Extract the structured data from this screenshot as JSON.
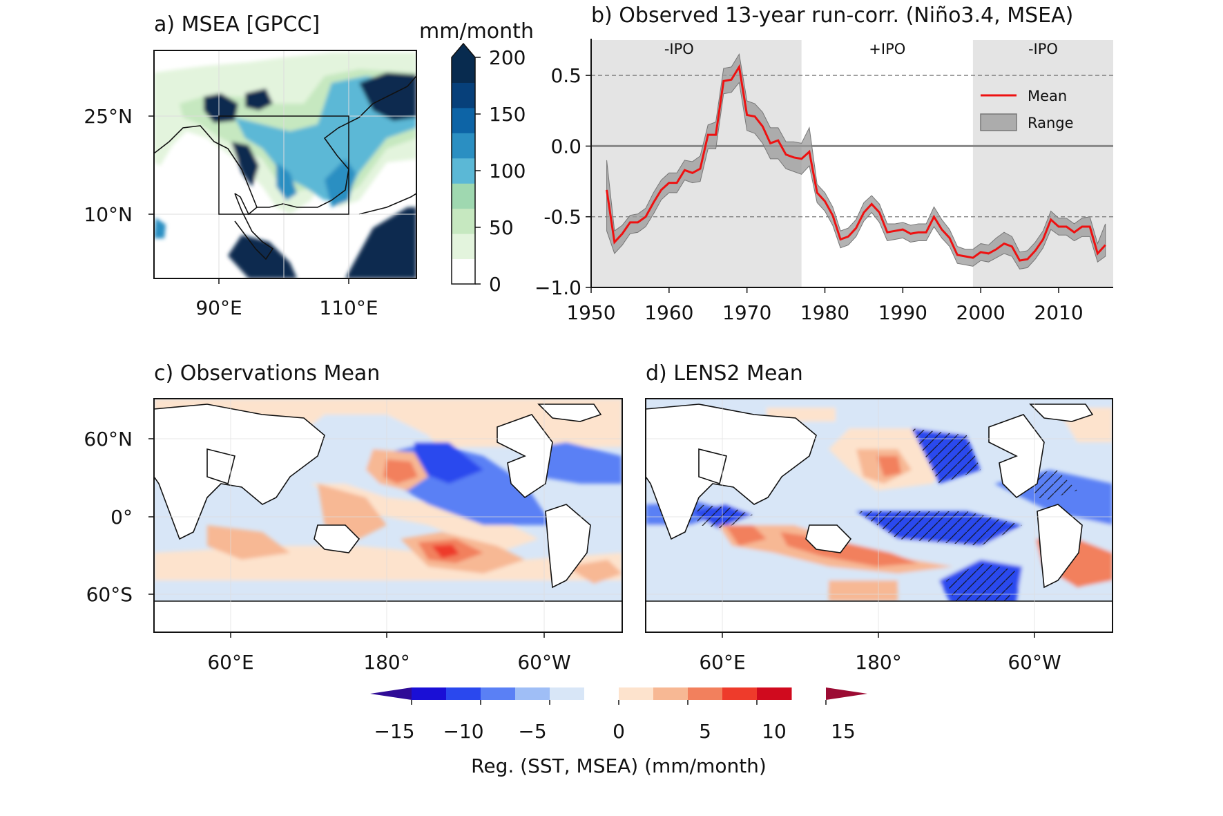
{
  "panel_a": {
    "title": "a) MSEA [GPCC]",
    "x_ticks": [
      "90°E",
      "110°E"
    ],
    "y_ticks": [
      "25°N",
      "10°N"
    ],
    "colorbar": {
      "unit": "mm/month",
      "ticks": [
        "200",
        "150",
        "100",
        "50",
        "0"
      ],
      "levels": [
        0,
        25,
        50,
        75,
        100,
        125,
        150,
        175,
        200
      ],
      "colors": [
        "#ffffff",
        "#e3f4dd",
        "#c6e8c0",
        "#9fd8b0",
        "#5bb8d6",
        "#2b8fc2",
        "#0d64a6",
        "#07407a",
        "#082b4f"
      ],
      "extend": "max"
    },
    "box": {
      "lon": [
        90,
        110
      ],
      "lat": [
        10,
        25
      ]
    }
  },
  "chart_data": {
    "type": "line",
    "title": "b) Observed 13-year run-corr. (Niño3.4, MSEA)",
    "xlim": [
      1950,
      2017
    ],
    "ylim": [
      -1.0,
      0.75
    ],
    "x_ticks": [
      "1950",
      "1960",
      "1970",
      "1980",
      "1990",
      "2000",
      "2010"
    ],
    "y_ticks": [
      "0.5",
      "0.0",
      "-0.5",
      "−1.0"
    ],
    "reference_lines": {
      "solid": 0.0,
      "dashed": [
        0.5,
        -0.5
      ]
    },
    "phases": [
      {
        "label": "-IPO",
        "start": 1950,
        "end": 1977,
        "shaded": true
      },
      {
        "label": "+IPO",
        "start": 1977,
        "end": 1999,
        "shaded": false
      },
      {
        "label": "-IPO",
        "start": 1999,
        "end": 2017,
        "shaded": true
      }
    ],
    "legend": {
      "position": "upper-right",
      "entries": [
        "Mean",
        "Range"
      ]
    },
    "x": [
      1952,
      1953,
      1954,
      1955,
      1956,
      1957,
      1958,
      1959,
      1960,
      1961,
      1962,
      1963,
      1964,
      1965,
      1966,
      1967,
      1968,
      1969,
      1970,
      1971,
      1972,
      1973,
      1974,
      1975,
      1976,
      1977,
      1978,
      1979,
      1980,
      1981,
      1982,
      1983,
      1984,
      1985,
      1986,
      1987,
      1988,
      1989,
      1990,
      1991,
      1992,
      1993,
      1994,
      1995,
      1996,
      1997,
      1998,
      1999,
      2000,
      2001,
      2002,
      2003,
      2004,
      2005,
      2006,
      2007,
      2008,
      2009,
      2010,
      2011,
      2012,
      2013,
      2014,
      2015,
      2016
    ],
    "series": [
      {
        "name": "Mean",
        "color": "#ee1111",
        "values": [
          -0.31,
          -0.68,
          -0.62,
          -0.54,
          -0.54,
          -0.5,
          -0.4,
          -0.31,
          -0.26,
          -0.26,
          -0.17,
          -0.19,
          -0.16,
          0.08,
          0.08,
          0.46,
          0.47,
          0.56,
          0.22,
          0.21,
          0.14,
          0.02,
          0.04,
          -0.06,
          -0.08,
          -0.09,
          -0.04,
          -0.33,
          -0.39,
          -0.49,
          -0.66,
          -0.64,
          -0.58,
          -0.47,
          -0.41,
          -0.47,
          -0.61,
          -0.6,
          -0.59,
          -0.62,
          -0.61,
          -0.61,
          -0.5,
          -0.59,
          -0.65,
          -0.77,
          -0.78,
          -0.79,
          -0.75,
          -0.76,
          -0.73,
          -0.69,
          -0.71,
          -0.81,
          -0.8,
          -0.74,
          -0.66,
          -0.52,
          -0.57,
          -0.57,
          -0.61,
          -0.57,
          -0.57,
          -0.76,
          -0.7
        ]
      },
      {
        "name": "Range",
        "color": "#999999",
        "upper": [
          -0.1,
          -0.6,
          -0.56,
          -0.49,
          -0.48,
          -0.44,
          -0.33,
          -0.24,
          -0.19,
          -0.19,
          -0.1,
          -0.11,
          -0.07,
          0.15,
          0.17,
          0.55,
          0.56,
          0.65,
          0.32,
          0.3,
          0.24,
          0.13,
          0.13,
          0.03,
          0.03,
          0.02,
          0.13,
          -0.27,
          -0.33,
          -0.43,
          -0.6,
          -0.58,
          -0.52,
          -0.4,
          -0.35,
          -0.41,
          -0.55,
          -0.55,
          -0.54,
          -0.56,
          -0.55,
          -0.55,
          -0.43,
          -0.52,
          -0.59,
          -0.71,
          -0.73,
          -0.73,
          -0.69,
          -0.7,
          -0.65,
          -0.61,
          -0.64,
          -0.75,
          -0.74,
          -0.68,
          -0.6,
          -0.46,
          -0.51,
          -0.51,
          -0.55,
          -0.51,
          -0.5,
          -0.69,
          -0.55
        ],
        "lower": [
          -0.6,
          -0.76,
          -0.7,
          -0.62,
          -0.61,
          -0.57,
          -0.48,
          -0.38,
          -0.33,
          -0.33,
          -0.24,
          -0.26,
          -0.25,
          -0.02,
          -0.02,
          0.37,
          0.38,
          0.45,
          0.11,
          0.09,
          0.02,
          -0.09,
          -0.09,
          -0.16,
          -0.18,
          -0.2,
          -0.14,
          -0.4,
          -0.46,
          -0.56,
          -0.72,
          -0.7,
          -0.64,
          -0.53,
          -0.47,
          -0.54,
          -0.67,
          -0.66,
          -0.65,
          -0.68,
          -0.67,
          -0.67,
          -0.57,
          -0.65,
          -0.71,
          -0.83,
          -0.84,
          -0.85,
          -0.81,
          -0.82,
          -0.79,
          -0.76,
          -0.78,
          -0.87,
          -0.86,
          -0.8,
          -0.72,
          -0.59,
          -0.63,
          -0.63,
          -0.67,
          -0.64,
          -0.64,
          -0.82,
          -0.78
        ]
      }
    ]
  },
  "panel_c": {
    "title": "c) Observations Mean"
  },
  "panel_d": {
    "title": "d) LENS2 Mean"
  },
  "maps": {
    "x_ticks": [
      "60°E",
      "180°",
      "60°W"
    ],
    "y_ticks": [
      "60°N",
      "0°",
      "60°S"
    ]
  },
  "colorbar_bottom": {
    "label": "Reg. (SST, MSEA) (mm/month)",
    "ticks": [
      "−15",
      "−10",
      "−5",
      "0",
      "5",
      "10",
      "15"
    ],
    "levels": [
      -17.5,
      -15,
      -12.5,
      -10,
      -7.5,
      -5,
      -2.5,
      0,
      2.5,
      5,
      7.5,
      10,
      12.5,
      15,
      17.5
    ],
    "colors": [
      "#2f0b96",
      "#1a0fd6",
      "#2a48ee",
      "#5a80f5",
      "#9fbef6",
      "#d8e6f7",
      "#ffffff",
      "#fde3cd",
      "#f7b894",
      "#f2805d",
      "#ee3b2b",
      "#d00a1e",
      "#9c0b33"
    ],
    "extend": "both"
  }
}
